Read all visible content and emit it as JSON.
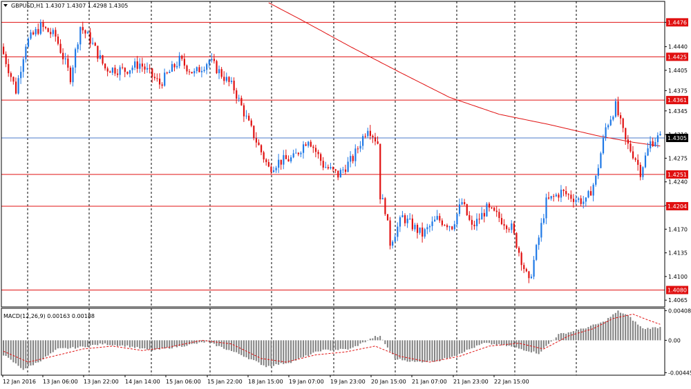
{
  "header": {
    "symbol_label": "GBPUSD,H1  1.4307 1.4307 1.4298 1.4305",
    "dropdown_icon": "triangle-down-icon"
  },
  "colors": {
    "bull": "#1e78e6",
    "bear": "#e01010",
    "level_line": "#e01010",
    "price_line": "#4a78c8",
    "ma_line": "#e01010",
    "histogram": "#808080",
    "signal": "#e01010",
    "grid": "#000000",
    "frame": "#000000",
    "level_badge": "#e01010",
    "price_badge": "#000000"
  },
  "chart_data": [
    {
      "type": "candlestick",
      "instrument": "GBPUSD",
      "timeframe": "H1",
      "ohlc_header": {
        "open": 1.4307,
        "high": 1.4307,
        "low": 1.4298,
        "close": 1.4305
      },
      "x_tick_labels": [
        "12 Jan 2016",
        "13 Jan 06:00",
        "13 Jan 22:00",
        "14 Jan 14:00",
        "15 Jan 06:00",
        "15 Jan 22:00",
        "18 Jan 15:00",
        "19 Jan 07:00",
        "19 Jan 23:00",
        "20 Jan 15:00",
        "21 Jan 07:00",
        "21 Jan 23:00",
        "22 Jan 15:00"
      ],
      "y_tick_labels": [
        "1.4476",
        "1.4440",
        "1.4405",
        "1.4375",
        "1.4345",
        "1.4310",
        "1.4275",
        "1.4240",
        "1.4205",
        "1.4170",
        "1.4135",
        "1.4100",
        "1.4065"
      ],
      "ylim": [
        1.4055,
        1.4507
      ],
      "levels": [
        1.4476,
        1.4425,
        1.4361,
        1.4251,
        1.4204,
        1.408
      ],
      "level_labels": [
        "1.4476",
        "1.4425",
        "1.4361",
        "1.4251",
        "1.4204",
        "1.4080"
      ],
      "current_price": 1.4305,
      "current_price_label": "1.4305",
      "candle_anchors": [
        [
          0,
          1.444
        ],
        [
          6,
          1.4375
        ],
        [
          10,
          1.4445
        ],
        [
          16,
          1.447
        ],
        [
          22,
          1.4455
        ],
        [
          28,
          1.4395
        ],
        [
          32,
          1.447
        ],
        [
          36,
          1.445
        ],
        [
          42,
          1.4408
        ],
        [
          50,
          1.4405
        ],
        [
          56,
          1.4415
        ],
        [
          64,
          1.4385
        ],
        [
          72,
          1.442
        ],
        [
          78,
          1.44
        ],
        [
          84,
          1.442
        ],
        [
          94,
          1.4378
        ],
        [
          100,
          1.4325
        ],
        [
          108,
          1.426
        ],
        [
          112,
          1.427
        ],
        [
          118,
          1.4275
        ],
        [
          124,
          1.4305
        ],
        [
          130,
          1.4265
        ],
        [
          136,
          1.425
        ],
        [
          142,
          1.4275
        ],
        [
          148,
          1.4322
        ],
        [
          152,
          1.4298
        ],
        [
          153,
          1.422
        ],
        [
          155,
          1.42
        ],
        [
          157,
          1.415
        ],
        [
          162,
          1.4188
        ],
        [
          170,
          1.4162
        ],
        [
          176,
          1.4185
        ],
        [
          182,
          1.4175
        ],
        [
          186,
          1.421
        ],
        [
          190,
          1.4172
        ],
        [
          196,
          1.42
        ],
        [
          200,
          1.419
        ],
        [
          206,
          1.4172
        ],
        [
          210,
          1.4125
        ],
        [
          213,
          1.409
        ],
        [
          216,
          1.414
        ],
        [
          220,
          1.421
        ],
        [
          226,
          1.4225
        ],
        [
          232,
          1.4215
        ],
        [
          236,
          1.421
        ],
        [
          240,
          1.4245
        ],
        [
          244,
          1.432
        ],
        [
          248,
          1.4352
        ],
        [
          252,
          1.43
        ],
        [
          256,
          1.4275
        ],
        [
          258,
          1.4255
        ],
        [
          262,
          1.4298
        ],
        [
          265,
          1.4305
        ]
      ],
      "ma_anchors": [
        [
          107,
          1.4505
        ],
        [
          120,
          1.448
        ],
        [
          140,
          1.444
        ],
        [
          160,
          1.4402
        ],
        [
          180,
          1.4365
        ],
        [
          200,
          1.434
        ],
        [
          220,
          1.4325
        ],
        [
          240,
          1.4308
        ],
        [
          255,
          1.4298
        ],
        [
          265,
          1.4293
        ]
      ]
    },
    {
      "type": "histogram",
      "title": "MACD(12,26,9) 0.00163 0.00188",
      "y_tick_labels": [
        "0.00408",
        "0.00",
        "-0.00445"
      ],
      "ylim": [
        -0.0048,
        0.0044
      ],
      "values_anchors": [
        [
          0,
          -0.002
        ],
        [
          8,
          -0.004
        ],
        [
          14,
          -0.003
        ],
        [
          22,
          -0.0012
        ],
        [
          30,
          -0.001
        ],
        [
          40,
          -0.0005
        ],
        [
          50,
          -0.0008
        ],
        [
          60,
          -0.0014
        ],
        [
          72,
          -0.0008
        ],
        [
          82,
          -0.0002
        ],
        [
          96,
          -0.002
        ],
        [
          106,
          -0.0036
        ],
        [
          116,
          -0.003
        ],
        [
          128,
          -0.0014
        ],
        [
          140,
          -0.0012
        ],
        [
          150,
          0.0005
        ],
        [
          152,
          0.0005
        ],
        [
          158,
          -0.0025
        ],
        [
          166,
          -0.003
        ],
        [
          176,
          -0.0028
        ],
        [
          184,
          -0.0018
        ],
        [
          194,
          -0.0004
        ],
        [
          204,
          -0.0008
        ],
        [
          216,
          -0.0018
        ],
        [
          224,
          0.0008
        ],
        [
          232,
          0.0014
        ],
        [
          242,
          0.0025
        ],
        [
          248,
          0.004
        ],
        [
          252,
          0.0034
        ],
        [
          258,
          0.0016
        ],
        [
          265,
          0.0018
        ]
      ],
      "signal_anchors": [
        [
          0,
          -0.0015
        ],
        [
          10,
          -0.003
        ],
        [
          20,
          -0.0022
        ],
        [
          32,
          -0.0012
        ],
        [
          44,
          -0.0008
        ],
        [
          56,
          -0.0014
        ],
        [
          66,
          -0.001
        ],
        [
          80,
          0.0
        ],
        [
          92,
          -0.0005
        ],
        [
          104,
          -0.0025
        ],
        [
          114,
          -0.003
        ],
        [
          126,
          -0.002
        ],
        [
          138,
          -0.0016
        ],
        [
          150,
          -0.0008
        ],
        [
          160,
          -0.0022
        ],
        [
          172,
          -0.003
        ],
        [
          184,
          -0.0022
        ],
        [
          196,
          -0.0008
        ],
        [
          208,
          -0.0004
        ],
        [
          218,
          -0.0012
        ],
        [
          228,
          0.0006
        ],
        [
          238,
          0.0016
        ],
        [
          246,
          0.003
        ],
        [
          254,
          0.0036
        ],
        [
          260,
          0.0028
        ],
        [
          265,
          0.0022
        ]
      ]
    }
  ]
}
